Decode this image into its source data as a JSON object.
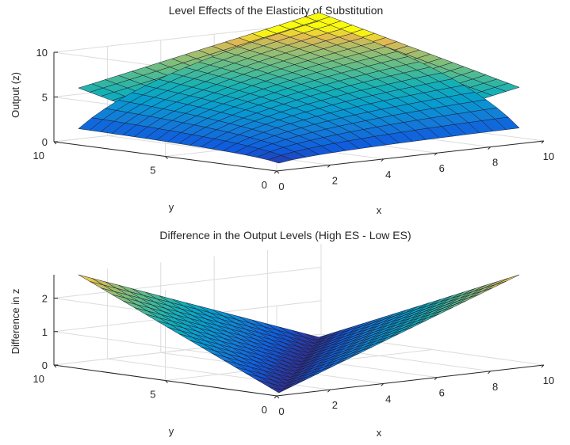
{
  "chart_data": [
    {
      "type": "surface3d",
      "title": "Level Effects of the Elasticity of Substitution",
      "xlabel": "x",
      "ylabel": "y",
      "zlabel": "Output (z)",
      "xlim": [
        0,
        10
      ],
      "ylim": [
        0,
        10
      ],
      "zlim": [
        0,
        10
      ],
      "xticks": [
        0,
        2,
        4,
        6,
        8,
        10
      ],
      "yticks": [
        0,
        5,
        10
      ],
      "zticks": [
        0,
        5,
        10
      ],
      "grid": true,
      "colormap": "parula",
      "x": [
        0.5,
        1,
        1.5,
        2,
        2.5,
        3,
        3.5,
        4,
        4.5,
        5,
        5.5,
        6,
        6.5,
        7,
        7.5,
        8,
        8.5,
        9,
        9.5
      ],
      "y": [
        0.5,
        1,
        1.5,
        2,
        2.5,
        3,
        3.5,
        4,
        4.5,
        5,
        5.5,
        6,
        6.5,
        7,
        7.5,
        8,
        8.5,
        9,
        9.5
      ],
      "series": [
        {
          "model": "ces",
          "params": {
            "a": 1.0,
            "rho": -1.0,
            "k": 1.2
          }
        },
        {
          "model": "ces",
          "params": {
            "a": 1.0,
            "rho": 0.5,
            "k": 1.1
          }
        }
      ]
    },
    {
      "type": "surface3d",
      "title": "Difference in the Output Levels (High ES - Low ES)",
      "xlabel": "x",
      "ylabel": "y",
      "zlabel": "Difference in z",
      "xlim": [
        0,
        10
      ],
      "ylim": [
        0,
        10
      ],
      "zlim": [
        0,
        2.7
      ],
      "xticks": [
        0,
        2,
        4,
        6,
        8,
        10
      ],
      "yticks": [
        0,
        5,
        10
      ],
      "zticks": [
        0,
        1,
        2
      ],
      "grid": true,
      "colormap": "parula",
      "x": [
        0.5,
        1,
        1.5,
        2,
        2.5,
        3,
        3.5,
        4,
        4.5,
        5,
        5.5,
        6,
        6.5,
        7,
        7.5,
        8,
        8.5,
        9,
        9.5
      ],
      "y": [
        0.5,
        1,
        1.5,
        2,
        2.5,
        3,
        3.5,
        4,
        4.5,
        5,
        5.5,
        6,
        6.5,
        7,
        7.5,
        8,
        8.5,
        9,
        9.5
      ],
      "series": [
        {
          "model": "difference",
          "params": {
            "scale": 0.3
          }
        }
      ]
    }
  ]
}
